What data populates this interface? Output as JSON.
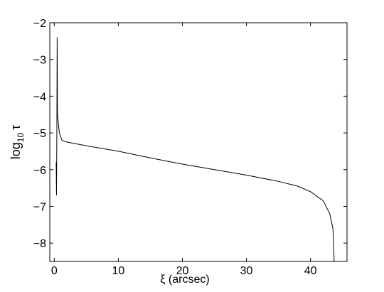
{
  "chart_data": {
    "type": "line",
    "x_label": "ξ (arcsec)",
    "y_label": {
      "base": "log",
      "subscript": "10",
      "symbol": "τ"
    },
    "xlim": [
      -0.7,
      45.7
    ],
    "ylim": [
      -8.5,
      -2
    ],
    "xticks": [
      0,
      10,
      20,
      30,
      40
    ],
    "yticks": [
      {
        "value": -8,
        "label": "−8"
      },
      {
        "value": -7,
        "label": "−7"
      },
      {
        "value": -6,
        "label": "−6"
      },
      {
        "value": -5,
        "label": "−5"
      },
      {
        "value": -4,
        "label": "−4"
      },
      {
        "value": -3,
        "label": "−3"
      },
      {
        "value": -2,
        "label": "−2"
      }
    ],
    "series": [
      {
        "color": "#000000",
        "x": [
          0.3,
          0.35,
          0.4,
          0.45,
          0.5,
          0.8,
          1.2,
          2,
          5,
          10,
          15,
          20,
          25,
          30,
          35,
          38,
          40,
          42,
          43,
          43.5,
          43.7
        ],
        "values": [
          -5.8,
          -6.7,
          -5.2,
          -2.4,
          -4.5,
          -5.0,
          -5.2,
          -5.25,
          -5.35,
          -5.5,
          -5.68,
          -5.85,
          -6.0,
          -6.15,
          -6.32,
          -6.45,
          -6.6,
          -6.85,
          -7.2,
          -7.6,
          -8.5
        ]
      }
    ]
  }
}
